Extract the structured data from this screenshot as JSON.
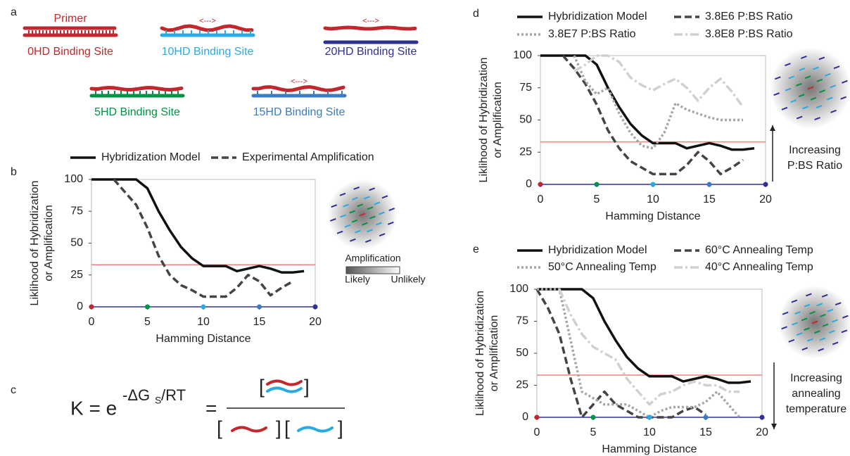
{
  "panel_labels": [
    "a",
    "b",
    "c",
    "d",
    "e"
  ],
  "panel_a": {
    "primer_label": "Primer",
    "sites": [
      {
        "label": "0HD Binding Site",
        "color": "#c1272d"
      },
      {
        "label": "10HD Binding Site",
        "color": "#29abe2",
        "arrow": "<--->"
      },
      {
        "label": "20HD Binding Site",
        "color": "#2e3192",
        "arrow": "<--->"
      },
      {
        "label": "5HD Binding Site",
        "color": "#009245"
      },
      {
        "label": "15HD Binding Site",
        "color": "#3a7cc1",
        "arrow": "<--->"
      }
    ]
  },
  "equation": {
    "lhs": "K = e",
    "exponent": "-ΔG",
    "exponent_sub": "S",
    "exponent_tail": "/RT",
    "equals": "=",
    "open": "[",
    "close": "]"
  },
  "chart_data": [
    {
      "type": "line",
      "ylabel": [
        "Liklihood of Hybridization",
        "or Amplification"
      ],
      "xlabel": "Hamming Distance",
      "x": [
        0,
        1,
        2,
        3,
        4,
        5,
        6,
        7,
        8,
        9,
        10,
        11,
        12,
        13,
        14,
        15,
        16,
        17,
        18,
        19
      ],
      "xlim": [
        0,
        20
      ],
      "ylim": [
        0,
        100
      ],
      "xticks": [
        0,
        5,
        10,
        15,
        20
      ],
      "yticks": [
        0,
        25,
        50,
        75,
        100
      ],
      "reference_line": {
        "value": 33,
        "color": "#f08080"
      },
      "axis_markers": {
        "x": [
          0,
          5,
          10,
          15,
          20
        ],
        "colors": [
          "#c1272d",
          "#009245",
          "#29abe2",
          "#3a7cc1",
          "#2e3192"
        ]
      },
      "annotations": [
        "Amplification",
        "Likely",
        "Unlikely"
      ],
      "series": [
        {
          "name": "Hybridization Model",
          "color": "#111111",
          "style": "solid",
          "values": [
            100,
            100,
            100,
            100,
            100,
            93,
            75,
            60,
            47,
            38,
            32,
            32,
            32,
            28,
            30,
            32,
            30,
            27,
            27,
            28
          ]
        },
        {
          "name": "Experimental Amplification",
          "color": "#444444",
          "style": "dashed",
          "values": [
            null,
            null,
            100,
            90,
            80,
            62,
            40,
            25,
            17,
            13,
            8,
            8,
            8,
            15,
            25,
            20,
            9,
            15,
            20,
            null
          ]
        }
      ]
    },
    {
      "type": "line",
      "ylabel": [
        "Liklihood of Hybridization",
        "or Amplification"
      ],
      "xlabel": "Hamming Distance",
      "x": [
        0,
        1,
        2,
        3,
        4,
        5,
        6,
        7,
        8,
        9,
        10,
        11,
        12,
        13,
        14,
        15,
        16,
        17,
        18,
        19
      ],
      "xlim": [
        0,
        20
      ],
      "ylim": [
        0,
        100
      ],
      "xticks": [
        0,
        5,
        10,
        15,
        20
      ],
      "yticks": [
        0,
        25,
        50,
        75,
        100
      ],
      "reference_line": {
        "value": 33,
        "color": "#f08080"
      },
      "axis_markers": {
        "x": [
          0,
          5,
          10,
          15,
          20
        ],
        "colors": [
          "#c1272d",
          "#009245",
          "#29abe2",
          "#3a7cc1",
          "#2e3192"
        ]
      },
      "annotations": [
        "Increasing",
        "P:BS Ratio"
      ],
      "series": [
        {
          "name": "Hybridization Model",
          "color": "#111111",
          "style": "solid",
          "values": [
            100,
            100,
            100,
            100,
            100,
            93,
            75,
            60,
            47,
            38,
            32,
            32,
            32,
            28,
            30,
            32,
            30,
            27,
            27,
            28
          ]
        },
        {
          "name": "3.8E6 P:BS Ratio",
          "color": "#444444",
          "style": "dashed",
          "values": [
            null,
            null,
            100,
            90,
            78,
            62,
            42,
            28,
            18,
            13,
            8,
            8,
            8,
            15,
            25,
            18,
            8,
            13,
            19,
            null
          ]
        },
        {
          "name": "3.8E7 P:BS Ratio",
          "color": "#a6a6a6",
          "style": "dotted",
          "values": [
            null,
            null,
            null,
            100,
            80,
            70,
            75,
            55,
            40,
            30,
            28,
            40,
            63,
            58,
            55,
            52,
            50,
            50,
            50,
            null
          ]
        },
        {
          "name": "3.8E8 P:BS Ratio",
          "color": "#d0d0d0",
          "style": "dashdot",
          "values": [
            null,
            null,
            null,
            88,
            93,
            100,
            100,
            95,
            83,
            77,
            73,
            78,
            82,
            75,
            65,
            75,
            82,
            72,
            60,
            null
          ]
        }
      ]
    },
    {
      "type": "line",
      "ylabel": [
        "Liklihood of Hybridization",
        "or Amplification"
      ],
      "xlabel": "Hamming Distance",
      "x": [
        0,
        1,
        2,
        3,
        4,
        5,
        6,
        7,
        8,
        9,
        10,
        11,
        12,
        13,
        14,
        15,
        16,
        17,
        18,
        19
      ],
      "xlim": [
        0,
        20
      ],
      "ylim": [
        0,
        100
      ],
      "xticks": [
        0,
        5,
        10,
        15,
        20
      ],
      "yticks": [
        0,
        25,
        50,
        75,
        100
      ],
      "reference_line": {
        "value": 33,
        "color": "#f08080"
      },
      "axis_markers": {
        "x": [
          0,
          5,
          10,
          15,
          20
        ],
        "colors": [
          "#c1272d",
          "#009245",
          "#29abe2",
          "#3a7cc1",
          "#2e3192"
        ]
      },
      "annotations": [
        "Increasing",
        "annealing",
        "temperature"
      ],
      "series": [
        {
          "name": "Hybridization Model",
          "color": "#111111",
          "style": "solid",
          "values": [
            100,
            100,
            100,
            100,
            100,
            93,
            75,
            60,
            47,
            38,
            32,
            32,
            32,
            28,
            30,
            32,
            30,
            27,
            27,
            28
          ]
        },
        {
          "name": "60°C Annealing Temp",
          "color": "#444444",
          "style": "dashed",
          "values": [
            100,
            85,
            65,
            30,
            0,
            10,
            20,
            10,
            5,
            0,
            0,
            0,
            0,
            5,
            8,
            2,
            null,
            null,
            null,
            null
          ]
        },
        {
          "name": "50°C Annealing Temp",
          "color": "#a6a6a6",
          "style": "dotted",
          "values": [
            100,
            100,
            100,
            60,
            20,
            15,
            10,
            10,
            10,
            5,
            0,
            5,
            8,
            8,
            8,
            12,
            20,
            10,
            0,
            null
          ]
        },
        {
          "name": "40°C Annealing Temp",
          "color": "#d0d0d0",
          "style": "dashdot",
          "values": [
            null,
            null,
            100,
            80,
            65,
            55,
            50,
            45,
            30,
            20,
            10,
            18,
            20,
            25,
            28,
            25,
            25,
            20,
            20,
            null
          ]
        }
      ]
    }
  ]
}
